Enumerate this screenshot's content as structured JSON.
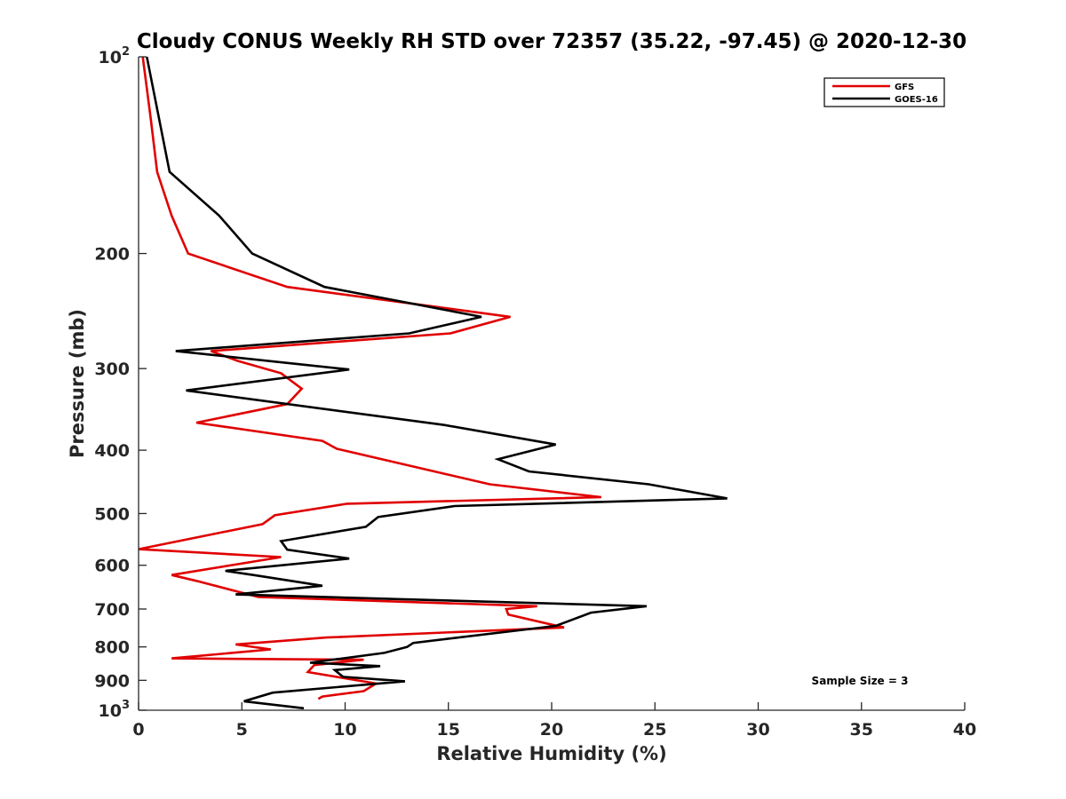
{
  "chart_data": {
    "type": "line",
    "title": "Cloudy CONUS Weekly RH STD over 72357 (35.22, -97.45) @ 2020-12-30",
    "xlabel": "Relative Humidity (%)",
    "ylabel": "Pressure (mb)",
    "xlim": [
      0,
      40
    ],
    "ylim": [
      100,
      1000
    ],
    "y_scale": "log",
    "y_reversed": true,
    "x_ticks": [
      0,
      5,
      10,
      15,
      20,
      25,
      30,
      35,
      40
    ],
    "x_tick_labels": [
      "0",
      "5",
      "10",
      "15",
      "20",
      "25",
      "30",
      "35",
      "40"
    ],
    "y_ticks": [
      100,
      200,
      300,
      400,
      500,
      600,
      700,
      800,
      900,
      1000
    ],
    "y_tick_labels": [
      {
        "base": "10",
        "sup": "2"
      },
      {
        "base": "200",
        "sup": ""
      },
      {
        "base": "300",
        "sup": ""
      },
      {
        "base": "400",
        "sup": ""
      },
      {
        "base": "500",
        "sup": ""
      },
      {
        "base": "600",
        "sup": ""
      },
      {
        "base": "700",
        "sup": ""
      },
      {
        "base": "800",
        "sup": ""
      },
      {
        "base": "900",
        "sup": ""
      },
      {
        "base": "10",
        "sup": "3"
      }
    ],
    "grid": false,
    "legend_position": "top-right",
    "annotation": "Sample Size = 3",
    "series": [
      {
        "name": "GFS",
        "color": "#e00000",
        "points": [
          [
            0.2,
            100
          ],
          [
            0.6,
            125
          ],
          [
            0.9,
            150
          ],
          [
            1.6,
            175
          ],
          [
            2.4,
            200
          ],
          [
            7.2,
            225
          ],
          [
            18.0,
            250
          ],
          [
            15.1,
            265
          ],
          [
            3.5,
            282
          ],
          [
            4.8,
            292
          ],
          [
            6.9,
            305
          ],
          [
            7.9,
            322
          ],
          [
            7.2,
            340
          ],
          [
            2.8,
            363
          ],
          [
            8.9,
            387
          ],
          [
            9.6,
            398
          ],
          [
            17.0,
            451
          ],
          [
            22.4,
            472
          ],
          [
            10.1,
            483
          ],
          [
            6.6,
            503
          ],
          [
            6.0,
            519
          ],
          [
            0.0,
            567
          ],
          [
            6.9,
            583
          ],
          [
            1.6,
            621
          ],
          [
            2.8,
            634
          ],
          [
            5.8,
            671
          ],
          [
            19.3,
            693
          ],
          [
            17.8,
            700
          ],
          [
            17.9,
            714
          ],
          [
            20.6,
            747
          ],
          [
            9.1,
            774
          ],
          [
            4.7,
            793
          ],
          [
            6.4,
            807
          ],
          [
            1.6,
            833
          ],
          [
            10.9,
            837
          ],
          [
            8.5,
            853
          ],
          [
            8.2,
            874
          ],
          [
            11.5,
            910
          ],
          [
            10.9,
            935
          ],
          [
            8.9,
            953
          ],
          [
            8.7,
            961
          ]
        ]
      },
      {
        "name": "GOES-16",
        "color": "#000000",
        "points": [
          [
            0.4,
            100
          ],
          [
            1.5,
            150
          ],
          [
            3.9,
            175
          ],
          [
            5.5,
            200
          ],
          [
            9.0,
            225
          ],
          [
            16.6,
            250
          ],
          [
            13.1,
            265
          ],
          [
            1.8,
            282
          ],
          [
            10.2,
            301
          ],
          [
            2.3,
            324
          ],
          [
            14.8,
            366
          ],
          [
            20.2,
            392
          ],
          [
            17.4,
            413
          ],
          [
            18.9,
            431
          ],
          [
            24.7,
            451
          ],
          [
            28.5,
            474
          ],
          [
            15.3,
            487
          ],
          [
            11.6,
            506
          ],
          [
            11.0,
            524
          ],
          [
            6.9,
            551
          ],
          [
            7.2,
            568
          ],
          [
            10.2,
            586
          ],
          [
            4.2,
            612
          ],
          [
            5.7,
            622
          ],
          [
            8.9,
            645
          ],
          [
            4.7,
            665
          ],
          [
            24.6,
            693
          ],
          [
            21.9,
            709
          ],
          [
            20.2,
            743
          ],
          [
            13.3,
            789
          ],
          [
            13.0,
            800
          ],
          [
            11.9,
            817
          ],
          [
            8.3,
            846
          ],
          [
            11.7,
            856
          ],
          [
            9.5,
            868
          ],
          [
            9.9,
            889
          ],
          [
            12.9,
            903
          ],
          [
            6.5,
            940
          ],
          [
            5.1,
            969
          ],
          [
            8.0,
            993
          ]
        ]
      }
    ]
  }
}
